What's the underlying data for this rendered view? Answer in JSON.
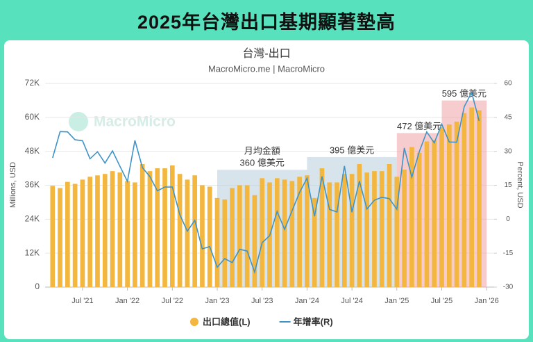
{
  "header": {
    "title": "2025年台灣出口基期顯著墊高"
  },
  "chart_data": {
    "type": "bar-line",
    "title": "台灣-出口",
    "subtitle": "MacroMicro.me | MacroMicro",
    "watermark": "MacroMicro",
    "y_label": "Millions, USD",
    "y2_label": "Percent, USD",
    "x": [
      "2021-03",
      "2021-04",
      "2021-05",
      "2021-06",
      "2021-07",
      "2021-08",
      "2021-09",
      "2021-10",
      "2021-11",
      "2021-12",
      "2022-01",
      "2022-02",
      "2022-03",
      "2022-04",
      "2022-05",
      "2022-06",
      "2022-07",
      "2022-08",
      "2022-09",
      "2022-10",
      "2022-11",
      "2022-12",
      "2023-01",
      "2023-02",
      "2023-03",
      "2023-04",
      "2023-05",
      "2023-06",
      "2023-07",
      "2023-08",
      "2023-09",
      "2023-10",
      "2023-11",
      "2023-12",
      "2024-01",
      "2024-02",
      "2024-03",
      "2024-04",
      "2024-05",
      "2024-06",
      "2024-07",
      "2024-08",
      "2024-09",
      "2024-10",
      "2024-11",
      "2024-12",
      "2025-01",
      "2025-02",
      "2025-03",
      "2025-04",
      "2025-05",
      "2025-06",
      "2025-07",
      "2025-08",
      "2025-09",
      "2025-10",
      "2025-11",
      "2025-12"
    ],
    "xlim": [
      "2021-02",
      "2026-02"
    ],
    "xticks": [
      {
        "value": "2021-07",
        "label": "Jul '21"
      },
      {
        "value": "2022-01",
        "label": "Jan '22"
      },
      {
        "value": "2022-07",
        "label": "Jul '22"
      },
      {
        "value": "2023-01",
        "label": "Jan '23"
      },
      {
        "value": "2023-07",
        "label": "Jul '23"
      },
      {
        "value": "2024-01",
        "label": "Jan '24"
      },
      {
        "value": "2024-07",
        "label": "Jul '24"
      },
      {
        "value": "2025-01",
        "label": "Jan '25"
      },
      {
        "value": "2025-07",
        "label": "Jul '25"
      },
      {
        "value": "2026-01",
        "label": "Jan '26"
      }
    ],
    "ylim": [
      0,
      72000
    ],
    "yticks": [
      0,
      {
        "value": 12000,
        "label": "12K"
      },
      {
        "value": 24000,
        "label": "24K"
      },
      {
        "value": 36000,
        "label": "36K"
      },
      {
        "value": 48000,
        "label": "48K"
      },
      {
        "value": 60000,
        "label": "60K"
      },
      {
        "value": 72000,
        "label": "72K"
      }
    ],
    "y2lim": [
      -30,
      60
    ],
    "y2ticks": [
      -30,
      -15,
      0,
      15,
      30,
      45,
      60
    ],
    "grid": true,
    "series": [
      {
        "name": "出口總值(L)",
        "type": "bar",
        "color": "#f3b73f",
        "values": [
          35800,
          35000,
          37200,
          36500,
          38000,
          39000,
          39500,
          40000,
          41000,
          40500,
          37500,
          37000,
          43500,
          41000,
          42000,
          42000,
          43000,
          40000,
          38000,
          39500,
          36000,
          35500,
          31500,
          31000,
          35000,
          36000,
          36000,
          32500,
          38500,
          37000,
          38500,
          38000,
          37500,
          39000,
          39500,
          31500,
          42000,
          37000,
          37000,
          40000,
          40000,
          43500,
          40500,
          41000,
          41000,
          43500,
          39000,
          41500,
          49500,
          47500,
          51500,
          52000,
          56500,
          57500,
          58500,
          61500,
          63500,
          62500
        ]
      },
      {
        "name": "年增率(R)",
        "type": "line",
        "axis": "y2",
        "color": "#3f93c6",
        "values": [
          27.1,
          38.7,
          38.6,
          35.1,
          34.7,
          26.7,
          29.8,
          24.8,
          30.2,
          23.4,
          16.7,
          34.8,
          22.8,
          18.8,
          12.5,
          14.2,
          14.2,
          2.0,
          -5.3,
          -0.5,
          -13.1,
          -12.1,
          -21.2,
          -17.4,
          -19.2,
          -13.3,
          -14.1,
          -23.4,
          -10.4,
          -7.3,
          3.4,
          -4.5,
          3.8,
          11.8,
          18.1,
          1.3,
          18.9,
          4.3,
          3.2,
          23.5,
          3.1,
          16.8,
          4.5,
          8.4,
          9.7,
          9.1,
          4.4,
          31.5,
          18.6,
          29.9,
          38.6,
          33.7,
          42.0,
          34.1,
          34.0,
          49.7,
          56.0,
          43.4
        ]
      }
    ],
    "annotations": [
      {
        "start": "2023-01",
        "end": "2024-01",
        "note": "月均金額",
        "label": "360 億美元",
        "color": "#b7cedd"
      },
      {
        "start": "2024-01",
        "end": "2025-01",
        "label": "395 億美元",
        "color": "#b7cedd"
      },
      {
        "start": "2025-01",
        "end": "2025-07",
        "label": "472 億美元",
        "color": "#f0a3a6"
      },
      {
        "start": "2025-07",
        "end": "2026-01",
        "label": "595 億美元",
        "color": "#f0a3a6"
      }
    ]
  }
}
